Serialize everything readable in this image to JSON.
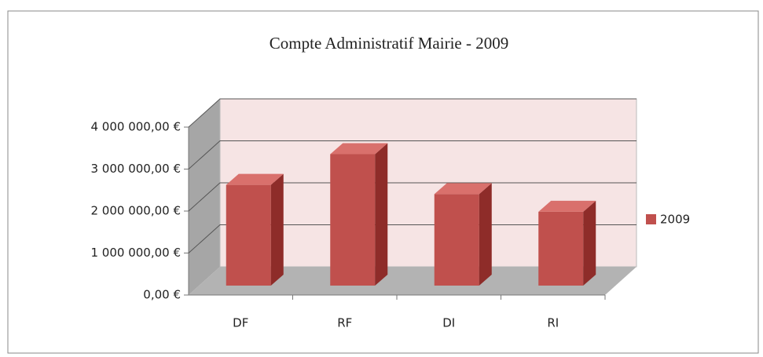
{
  "chart_data": {
    "type": "bar3d",
    "title": "Compte Administratif Mairie - 2009",
    "categories": [
      "DF",
      "RF",
      "DI",
      "RI"
    ],
    "series": [
      {
        "name": "2009",
        "color": "#c0504d",
        "values": [
          2400000,
          3130000,
          2180000,
          1760000
        ]
      }
    ],
    "ylim": [
      0,
      4000000
    ],
    "yticks": [
      {
        "value": 0,
        "label": "0,00 €"
      },
      {
        "value": 1000000,
        "label": "1 000 000,00 €"
      },
      {
        "value": 2000000,
        "label": "2 000 000,00 €"
      },
      {
        "value": 3000000,
        "label": "3 000 000,00 €"
      },
      {
        "value": 4000000,
        "label": "4 000 000,00 €"
      }
    ],
    "grid": true,
    "legend": "right"
  }
}
